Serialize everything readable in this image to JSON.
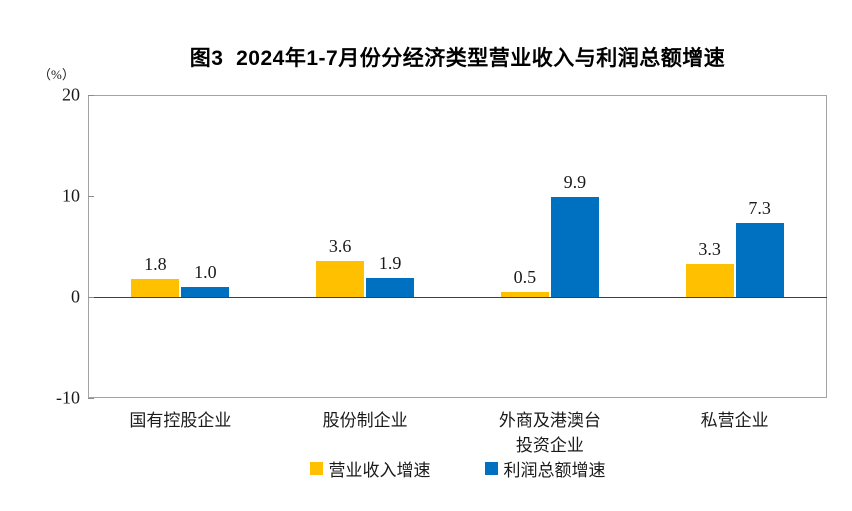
{
  "chart_data": {
    "type": "bar",
    "title": "图3  2024年1-7月份分经济类型营业收入与利润总额增速",
    "unit_label": "（%）",
    "categories": [
      "国有控股企业",
      "股份制企业",
      "外商及港澳台\n投资企业",
      "私营企业"
    ],
    "series": [
      {
        "name": "营业收入增速",
        "color": "#FFC000",
        "values": [
          1.8,
          3.6,
          0.5,
          3.3
        ]
      },
      {
        "name": "利润总额增速",
        "color": "#0070C0",
        "values": [
          1.0,
          1.9,
          9.9,
          7.3
        ]
      }
    ],
    "ylim": [
      -10,
      20
    ],
    "yticks": [
      20,
      10,
      0,
      -10
    ],
    "grid": false,
    "legend_position": "bottom",
    "data_labels": true,
    "value_decimals": 1
  }
}
